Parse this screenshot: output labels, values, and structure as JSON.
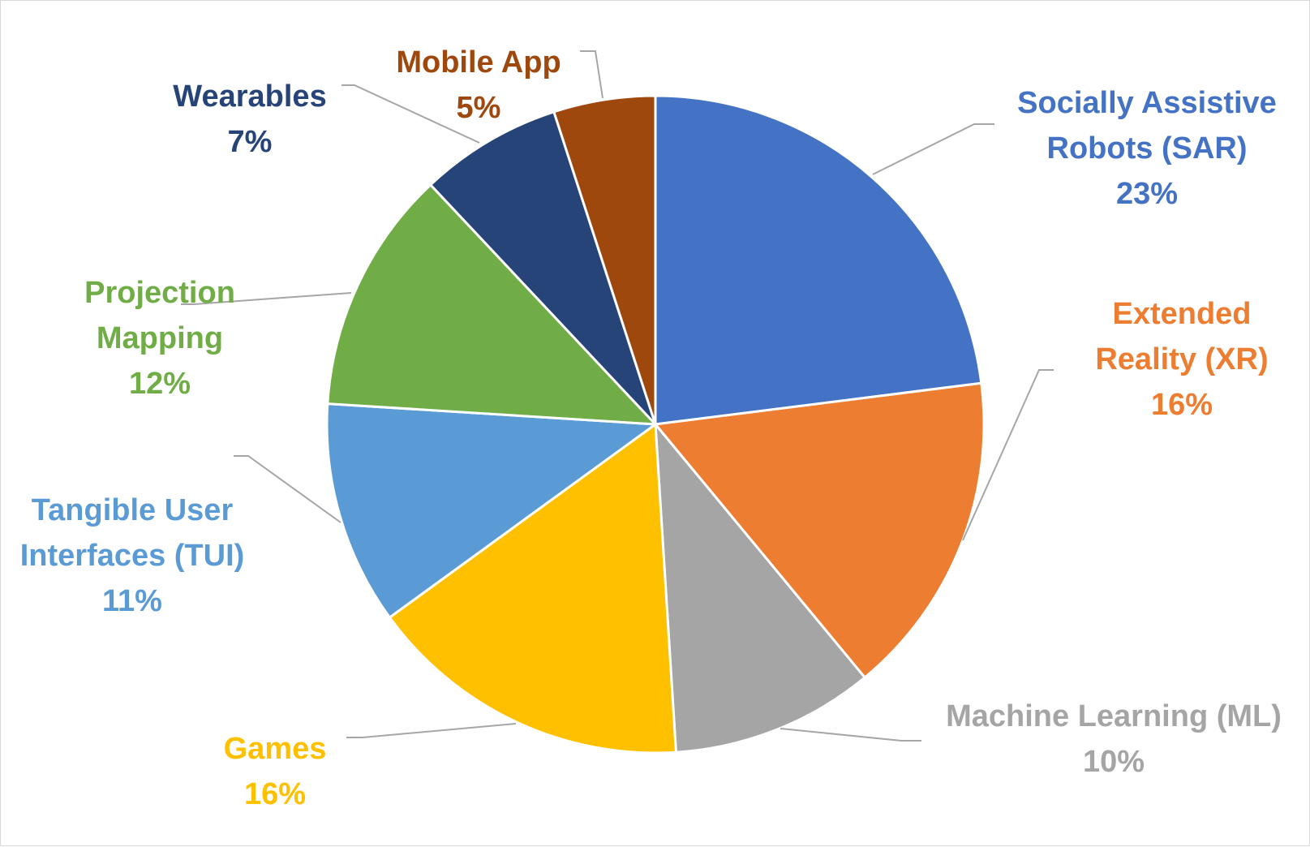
{
  "chart_data": {
    "type": "pie",
    "start_angle_deg": 0,
    "direction": "clockwise",
    "slices": [
      {
        "name": "Socially Assistive Robots (SAR)",
        "lines": [
          "Socially Assistive",
          "Robots (SAR)"
        ],
        "value": 23,
        "label": "23%",
        "color": "#4472C4"
      },
      {
        "name": "Extended Reality (XR)",
        "lines": [
          "Extended",
          "Reality (XR)"
        ],
        "value": 16,
        "label": "16%",
        "color": "#ED7D31"
      },
      {
        "name": "Machine Learning (ML)",
        "lines": [
          "Machine Learning (ML)"
        ],
        "value": 10,
        "label": "10%",
        "color": "#A5A5A5"
      },
      {
        "name": "Games",
        "lines": [
          "Games"
        ],
        "value": 16,
        "label": "16%",
        "color": "#FFC000"
      },
      {
        "name": "Tangible User Interfaces (TUI)",
        "lines": [
          "Tangible User",
          "Interfaces (TUI)"
        ],
        "value": 11,
        "label": "11%",
        "color": "#5B9BD5"
      },
      {
        "name": "Projection Mapping",
        "lines": [
          "Projection",
          "Mapping"
        ],
        "value": 12,
        "label": "12%",
        "color": "#70AD47"
      },
      {
        "name": "Wearables",
        "lines": [
          "Wearables"
        ],
        "value": 7,
        "label": "7%",
        "color": "#264478"
      },
      {
        "name": "Mobile App",
        "lines": [
          "Mobile App"
        ],
        "value": 5,
        "label": "5%",
        "color": "#9E480E"
      }
    ]
  }
}
